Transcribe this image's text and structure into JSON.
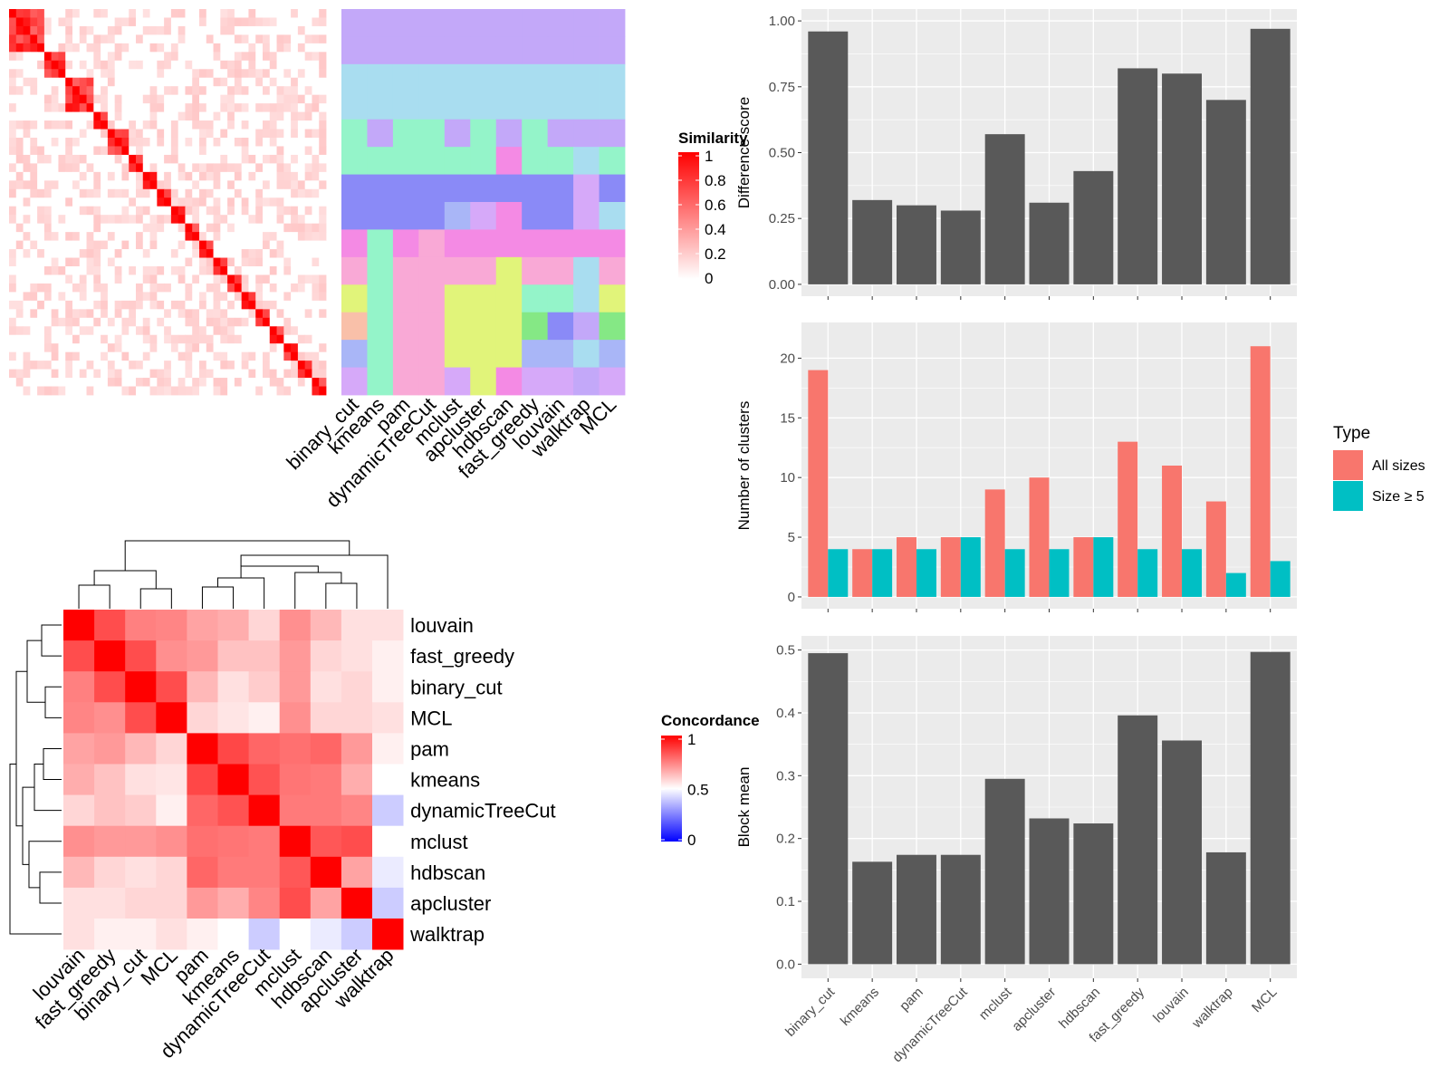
{
  "methods": [
    "binary_cut",
    "kmeans",
    "pam",
    "dynamicTreeCut",
    "mclust",
    "apcluster",
    "hdbscan",
    "fast_greedy",
    "louvain",
    "walktrap",
    "MCL"
  ],
  "similarity_legend": {
    "title": "Similarity",
    "ticks": [
      "1",
      "0.8",
      "0.6",
      "0.4",
      "0.2",
      "0"
    ]
  },
  "concordance_legend": {
    "title": "Concordance",
    "ticks": [
      "1",
      "0.5",
      "0"
    ]
  },
  "concordance_order": [
    "louvain",
    "fast_greedy",
    "binary_cut",
    "MCL",
    "pam",
    "kmeans",
    "dynamicTreeCut",
    "mclust",
    "hdbscan",
    "apcluster",
    "walktrap"
  ],
  "type_legend": {
    "title": "Type",
    "items": [
      {
        "label": "All sizes",
        "color": "#F8766D"
      },
      {
        "label": "Size ≥ 5",
        "color": "#00BFC4"
      }
    ]
  },
  "colors": {
    "bar": "#595959",
    "panel_bg": "#EBEBEB",
    "grid": "#ffffff",
    "all_sizes": "#F8766D",
    "size_ge5": "#00BFC4",
    "heat_high": "#FF0000",
    "heat_low": "#0000FF"
  },
  "chart_data": [
    {
      "type": "heatmap",
      "title": "",
      "legend_title": "Similarity",
      "description_values": "block-diagonal similarity matrix with ~45 terms"
    },
    {
      "type": "heatmap",
      "title": "",
      "legend_title": "Concordance",
      "rows": [
        "louvain",
        "fast_greedy",
        "binary_cut",
        "MCL",
        "pam",
        "kmeans",
        "dynamicTreeCut",
        "mclust",
        "hdbscan",
        "apcluster",
        "walktrap"
      ],
      "cols": [
        "louvain",
        "fast_greedy",
        "binary_cut",
        "MCL",
        "pam",
        "kmeans",
        "dynamicTreeCut",
        "mclust",
        "hdbscan",
        "apcluster",
        "walktrap"
      ],
      "values": [
        [
          1.0,
          0.85,
          0.75,
          0.74,
          0.68,
          0.66,
          0.58,
          0.72,
          0.64,
          0.56,
          0.56
        ],
        [
          0.85,
          1.0,
          0.85,
          0.72,
          0.7,
          0.62,
          0.62,
          0.7,
          0.58,
          0.56,
          0.53
        ],
        [
          0.75,
          0.85,
          1.0,
          0.85,
          0.64,
          0.56,
          0.6,
          0.7,
          0.56,
          0.58,
          0.53
        ],
        [
          0.74,
          0.72,
          0.85,
          1.0,
          0.58,
          0.55,
          0.53,
          0.72,
          0.58,
          0.58,
          0.56
        ],
        [
          0.68,
          0.7,
          0.64,
          0.58,
          1.0,
          0.86,
          0.8,
          0.78,
          0.8,
          0.7,
          0.53
        ],
        [
          0.66,
          0.62,
          0.56,
          0.55,
          0.86,
          1.0,
          0.84,
          0.77,
          0.76,
          0.66,
          0.5
        ],
        [
          0.58,
          0.62,
          0.6,
          0.53,
          0.8,
          0.84,
          1.0,
          0.76,
          0.76,
          0.74,
          0.4
        ],
        [
          0.72,
          0.7,
          0.7,
          0.72,
          0.78,
          0.77,
          0.76,
          1.0,
          0.83,
          0.85,
          0.5
        ],
        [
          0.64,
          0.58,
          0.56,
          0.58,
          0.8,
          0.76,
          0.76,
          0.83,
          1.0,
          0.68,
          0.46
        ],
        [
          0.56,
          0.56,
          0.58,
          0.58,
          0.7,
          0.66,
          0.74,
          0.85,
          0.68,
          1.0,
          0.4
        ],
        [
          0.56,
          0.53,
          0.53,
          0.56,
          0.53,
          0.5,
          0.4,
          0.5,
          0.46,
          0.4,
          1.0
        ]
      ],
      "range": [
        0,
        1
      ]
    },
    {
      "type": "bar",
      "categories": [
        "binary_cut",
        "kmeans",
        "pam",
        "dynamicTreeCut",
        "mclust",
        "apcluster",
        "hdbscan",
        "fast_greedy",
        "louvain",
        "walktrap",
        "MCL"
      ],
      "values": [
        0.96,
        0.32,
        0.3,
        0.28,
        0.57,
        0.31,
        0.43,
        0.82,
        0.8,
        0.7,
        0.97
      ],
      "ylabel": "Difference score",
      "ylim": [
        0,
        1
      ],
      "yticks": [
        "0.00",
        "0.25",
        "0.50",
        "0.75",
        "1.00"
      ],
      "grid": true
    },
    {
      "type": "bar",
      "categories": [
        "binary_cut",
        "kmeans",
        "pam",
        "dynamicTreeCut",
        "mclust",
        "apcluster",
        "hdbscan",
        "fast_greedy",
        "louvain",
        "walktrap",
        "MCL"
      ],
      "series": [
        {
          "name": "All sizes",
          "values": [
            19,
            4,
            5,
            5,
            9,
            10,
            5,
            13,
            11,
            8,
            21
          ]
        },
        {
          "name": "Size ≥ 5",
          "values": [
            4,
            4,
            4,
            5,
            4,
            4,
            5,
            4,
            4,
            2,
            3
          ]
        }
      ],
      "ylabel": "Number of clusters",
      "ylim": [
        0,
        22
      ],
      "yticks": [
        "0",
        "5",
        "10",
        "15",
        "20"
      ],
      "legend_position": "right",
      "grid": true
    },
    {
      "type": "bar",
      "categories": [
        "binary_cut",
        "kmeans",
        "pam",
        "dynamicTreeCut",
        "mclust",
        "apcluster",
        "hdbscan",
        "fast_greedy",
        "louvain",
        "walktrap",
        "MCL"
      ],
      "values": [
        0.495,
        0.163,
        0.174,
        0.174,
        0.295,
        0.232,
        0.224,
        0.396,
        0.356,
        0.178,
        0.497
      ],
      "ylabel": "Block mean",
      "ylim": [
        0,
        0.5
      ],
      "yticks": [
        "0.0",
        "0.1",
        "0.2",
        "0.3",
        "0.4",
        "0.5"
      ],
      "grid": true
    }
  ]
}
